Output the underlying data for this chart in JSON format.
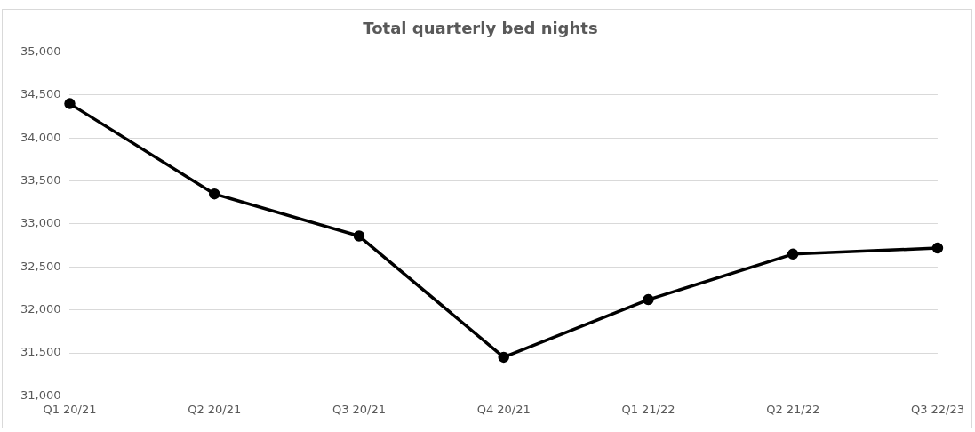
{
  "chart_data": {
    "type": "line",
    "title": "Total quarterly bed nights",
    "categories": [
      "Q1 20/21",
      "Q2 20/21",
      "Q3 20/21",
      "Q4 20/21",
      "Q1 21/22",
      "Q2 21/22",
      "Q3 22/23"
    ],
    "series": [
      {
        "color": "#000000",
        "values": [
          34400,
          33350,
          32860,
          31450,
          32120,
          32650,
          32720
        ]
      }
    ],
    "ylim": [
      31000,
      35000
    ],
    "yticks": [
      {
        "value": 31000,
        "label": "31,000"
      },
      {
        "value": 31500,
        "label": "31,500"
      },
      {
        "value": 32000,
        "label": "32,000"
      },
      {
        "value": 32500,
        "label": "32,500"
      },
      {
        "value": 33000,
        "label": "33,000"
      },
      {
        "value": 33500,
        "label": "33,500"
      },
      {
        "value": 34000,
        "label": "34,000"
      },
      {
        "value": 34500,
        "label": "34,500"
      },
      {
        "value": 35000,
        "label": "35,000"
      }
    ],
    "grid": "y",
    "legend": false,
    "marker": "circle",
    "line_style": "solid"
  }
}
